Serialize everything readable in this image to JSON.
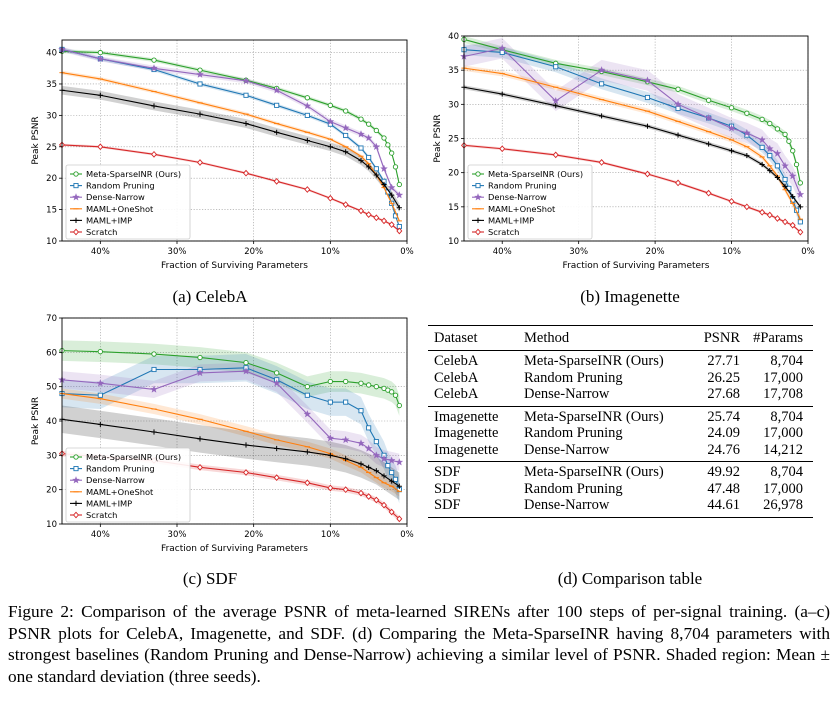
{
  "colors": {
    "Meta-SparseINR (Ours)": "#2ca02c",
    "Random Pruning": "#1f77b4",
    "Dense-Narrow": "#9467bd",
    "MAML+OneShot": "#ff7f0e",
    "MAML+IMP": "#000000",
    "Scratch": "#d62728"
  },
  "chart_data": [
    {
      "id": "celeba",
      "type": "line",
      "caption": "(a) CelebA",
      "xlabel": "Fraction of Surviving Parameters",
      "ylabel": "Peak PSNR",
      "xlim": [
        45,
        0
      ],
      "ylim": [
        10,
        42
      ],
      "xticks": [
        40,
        30,
        20,
        10,
        0
      ],
      "xtick_labels": [
        "40%",
        "30%",
        "20%",
        "10%",
        "0%"
      ],
      "yticks": [
        10,
        15,
        20,
        25,
        30,
        35,
        40
      ],
      "grid": true,
      "legend": "bottom-left",
      "series": [
        {
          "name": "Meta-SparseINR (Ours)",
          "marker": "circle",
          "x": [
            45,
            40,
            33,
            27,
            21,
            17,
            13,
            10,
            8,
            6,
            5,
            4,
            3,
            2.5,
            2,
            1.5,
            1
          ],
          "y": [
            40.2,
            40,
            38.8,
            37.2,
            35.6,
            34.3,
            32.8,
            31.6,
            30.7,
            29.4,
            28.6,
            27.6,
            26.4,
            25.3,
            24,
            21.8,
            19
          ],
          "std": 0.3
        },
        {
          "name": "Random Pruning",
          "marker": "square",
          "x": [
            45,
            40,
            33,
            27,
            21,
            17,
            13,
            10,
            8,
            6,
            5,
            4,
            3,
            2.5,
            2,
            1.5,
            1
          ],
          "y": [
            40.5,
            39,
            37.3,
            35,
            33.2,
            31.6,
            30,
            28.6,
            26.8,
            24.8,
            23.3,
            21.5,
            19.5,
            17.8,
            16,
            14,
            12.3
          ],
          "std": 0.3
        },
        {
          "name": "Dense-Narrow",
          "marker": "star",
          "x": [
            45,
            40,
            33,
            27,
            21,
            17,
            13,
            10,
            8,
            6,
            5,
            4,
            3,
            2,
            1
          ],
          "y": [
            40.5,
            39,
            37.5,
            36.5,
            35.5,
            34,
            31.5,
            29,
            28,
            27,
            26.4,
            25,
            21.5,
            18.5,
            17.3
          ],
          "std": 0.4
        },
        {
          "name": "MAML+OneShot",
          "marker": "hline",
          "x": [
            45,
            40,
            33,
            27,
            21,
            17,
            13,
            10,
            8,
            6,
            5,
            4,
            3,
            2,
            1
          ],
          "y": [
            36.8,
            35.8,
            33.8,
            32,
            30.2,
            28.7,
            27.3,
            26.2,
            25,
            23.5,
            22.3,
            20.5,
            18.5,
            16,
            13.2
          ],
          "std": 0.3
        },
        {
          "name": "MAML+IMP",
          "marker": "plus",
          "x": [
            45,
            40,
            33,
            27,
            21,
            17,
            13,
            10,
            8,
            6,
            5,
            4,
            3,
            2,
            1
          ],
          "y": [
            34,
            33.2,
            31.5,
            30.2,
            28.7,
            27.3,
            26,
            25,
            24.2,
            22.8,
            21.8,
            20.5,
            19,
            17.3,
            15.3
          ],
          "std": 0.7
        },
        {
          "name": "Scratch",
          "marker": "diamond",
          "x": [
            45,
            40,
            33,
            27,
            21,
            17,
            13,
            10,
            8,
            6,
            5,
            4,
            3,
            2,
            1
          ],
          "y": [
            25.3,
            25,
            23.8,
            22.5,
            20.8,
            19.5,
            18.2,
            16.8,
            15.8,
            14.8,
            14.2,
            13.7,
            13.2,
            12.6,
            11.6
          ],
          "std": 0.2
        }
      ]
    },
    {
      "id": "imagenette",
      "type": "line",
      "caption": "(b) Imagenette",
      "xlabel": "Fraction of Surviving Parameters",
      "ylabel": "Peak PSNR",
      "xlim": [
        45,
        0
      ],
      "ylim": [
        10,
        40
      ],
      "xticks": [
        40,
        30,
        20,
        10,
        0
      ],
      "xtick_labels": [
        "40%",
        "30%",
        "20%",
        "10%",
        "0%"
      ],
      "yticks": [
        10,
        15,
        20,
        25,
        30,
        35,
        40
      ],
      "grid": true,
      "legend": "bottom-left",
      "series": [
        {
          "name": "Meta-SparseINR (Ours)",
          "marker": "circle",
          "x": [
            45,
            40,
            33,
            27,
            21,
            17,
            13,
            10,
            8,
            6,
            5,
            4,
            3,
            2.5,
            2,
            1.5,
            1
          ],
          "y": [
            39.5,
            38,
            36,
            34.8,
            33.3,
            32.2,
            30.6,
            29.5,
            28.7,
            27.8,
            27.2,
            26.4,
            25.6,
            24.6,
            23.2,
            21.2,
            18.5
          ],
          "std": 0.5
        },
        {
          "name": "Random Pruning",
          "marker": "square",
          "x": [
            45,
            40,
            33,
            27,
            21,
            17,
            13,
            10,
            8,
            6,
            5,
            4,
            3,
            2.5,
            2,
            1.5,
            1
          ],
          "y": [
            38,
            37.6,
            35.5,
            33,
            31,
            29.4,
            28,
            26.8,
            25.5,
            23.7,
            22.5,
            21,
            19,
            17.7,
            16,
            14.5,
            12.8
          ],
          "std": 0.8
        },
        {
          "name": "Dense-Narrow",
          "marker": "star",
          "x": [
            45,
            40,
            33,
            27,
            21,
            17,
            13,
            10,
            8,
            6,
            5,
            4,
            3,
            2,
            1
          ],
          "y": [
            37,
            38.2,
            30.5,
            35,
            33.5,
            30,
            28,
            26.5,
            25.8,
            24.8,
            23.5,
            22.8,
            21,
            19.5,
            16.8
          ],
          "std": 1.5
        },
        {
          "name": "MAML+OneShot",
          "marker": "hline",
          "x": [
            45,
            40,
            33,
            27,
            21,
            17,
            13,
            10,
            8,
            6,
            5,
            4,
            3,
            2,
            1
          ],
          "y": [
            35.3,
            34.5,
            32.5,
            30.7,
            29,
            27.5,
            26,
            24.8,
            23.8,
            22.3,
            21,
            19.5,
            17.5,
            15.5,
            13.2
          ],
          "std": 0.4
        },
        {
          "name": "MAML+IMP",
          "marker": "plus",
          "x": [
            45,
            40,
            33,
            27,
            21,
            17,
            13,
            10,
            8,
            6,
            5,
            4,
            3,
            2,
            1
          ],
          "y": [
            32.5,
            31.5,
            29.8,
            28.3,
            26.8,
            25.5,
            24.2,
            23.2,
            22.5,
            21.2,
            20.3,
            19.3,
            18,
            16.5,
            15
          ],
          "std": 0.3
        },
        {
          "name": "Scratch",
          "marker": "diamond",
          "x": [
            45,
            40,
            33,
            27,
            21,
            17,
            13,
            10,
            8,
            6,
            5,
            4,
            3,
            2,
            1
          ],
          "y": [
            24,
            23.5,
            22.6,
            21.5,
            19.8,
            18.5,
            17,
            15.8,
            15,
            14.2,
            13.8,
            13.3,
            12.8,
            12.3,
            11.3
          ],
          "std": 0.2
        }
      ]
    },
    {
      "id": "sdf",
      "type": "line",
      "caption": "(c) SDF",
      "xlabel": "Fraction of Surviving Parameters",
      "ylabel": "Peak PSNR",
      "xlim": [
        45,
        0
      ],
      "ylim": [
        10,
        70
      ],
      "xticks": [
        40,
        30,
        20,
        10,
        0
      ],
      "xtick_labels": [
        "40%",
        "30%",
        "20%",
        "10%",
        "0%"
      ],
      "yticks": [
        10,
        20,
        30,
        40,
        50,
        60,
        70
      ],
      "grid": true,
      "legend": "bottom-left",
      "series": [
        {
          "name": "Meta-SparseINR (Ours)",
          "marker": "circle",
          "x": [
            45,
            40,
            33,
            27,
            21,
            17,
            13,
            10,
            8,
            6,
            5,
            4,
            3,
            2.5,
            2,
            1.5,
            1
          ],
          "y": [
            60.5,
            60.2,
            59.5,
            58.5,
            57,
            54,
            50,
            51.5,
            51.5,
            51,
            50.5,
            50,
            49.5,
            49,
            48.5,
            47.5,
            44.5
          ],
          "std": 3
        },
        {
          "name": "Random Pruning",
          "marker": "square",
          "x": [
            45,
            40,
            33,
            27,
            21,
            17,
            13,
            10,
            8,
            6,
            5,
            4,
            3,
            2.5,
            2,
            1.5,
            1
          ],
          "y": [
            48,
            47.5,
            55,
            55,
            55.5,
            52,
            47.5,
            45.5,
            45.5,
            43,
            38,
            34,
            30,
            27,
            25,
            23,
            20
          ],
          "std": 4
        },
        {
          "name": "Dense-Narrow",
          "marker": "star",
          "x": [
            45,
            40,
            33,
            27,
            21,
            17,
            13,
            10,
            8,
            6,
            5,
            4,
            3,
            2,
            1
          ],
          "y": [
            52,
            51,
            49.2,
            54,
            54.5,
            51,
            42,
            35,
            34.5,
            33.5,
            32,
            30,
            29,
            28.5,
            28
          ],
          "std": 2.5
        },
        {
          "name": "MAML+OneShot",
          "marker": "hline",
          "x": [
            45,
            40,
            33,
            27,
            21,
            17,
            13,
            10,
            8,
            6,
            5,
            4,
            3,
            2,
            1
          ],
          "y": [
            48,
            46.5,
            43.5,
            40.5,
            37,
            34.5,
            32.5,
            30.5,
            28.5,
            26.5,
            25,
            23.5,
            22,
            21,
            19.5
          ],
          "std": 1.5
        },
        {
          "name": "MAML+IMP",
          "marker": "plus",
          "x": [
            45,
            40,
            33,
            27,
            21,
            17,
            13,
            10,
            8,
            6,
            5,
            4,
            3,
            2,
            1
          ],
          "y": [
            40.5,
            39,
            36.8,
            34.8,
            33,
            32,
            31,
            30,
            29,
            27.5,
            26.5,
            25.5,
            24,
            22.5,
            21
          ],
          "std": 4
        },
        {
          "name": "Scratch",
          "marker": "diamond",
          "x": [
            45,
            40,
            33,
            27,
            21,
            17,
            13,
            10,
            8,
            6,
            5,
            4,
            3,
            2,
            1
          ],
          "y": [
            30.5,
            29.5,
            28.5,
            26.5,
            25,
            23.5,
            22,
            20.5,
            20,
            19,
            18,
            17,
            15.5,
            13.5,
            11.5
          ],
          "std": 0.8
        }
      ]
    },
    {
      "id": "comparison",
      "type": "table",
      "caption": "(d) Comparison table",
      "headers": [
        "Dataset",
        "Method",
        "PSNR",
        "#Params"
      ],
      "groups": [
        [
          [
            "CelebA",
            "Meta-SparseINR (Ours)",
            "27.71",
            "8,704"
          ],
          [
            "CelebA",
            "Random Pruning",
            "26.25",
            "17,000"
          ],
          [
            "CelebA",
            "Dense-Narrow",
            "27.68",
            "17,708"
          ]
        ],
        [
          [
            "Imagenette",
            "Meta-SparseINR (Ours)",
            "25.74",
            "8,704"
          ],
          [
            "Imagenette",
            "Random Pruning",
            "24.09",
            "17,000"
          ],
          [
            "Imagenette",
            "Dense-Narrow",
            "24.76",
            "14,212"
          ]
        ],
        [
          [
            "SDF",
            "Meta-SparseINR (Ours)",
            "49.92",
            "8,704"
          ],
          [
            "SDF",
            "Random Pruning",
            "47.48",
            "17,000"
          ],
          [
            "SDF",
            "Dense-Narrow",
            "44.61",
            "26,978"
          ]
        ]
      ]
    }
  ],
  "figure_caption": "Figure 2: Comparison of the average PSNR of meta-learned SIRENs after 100 steps of per-signal training. (a–c) PSNR plots for CelebA, Imagenette, and SDF. (d) Comparing the Meta-SparseINR having 8,704 parameters with strongest baselines (Random Pruning and Dense-Narrow) achieving a similar level of PSNR. Shaded region: Mean ± one standard deviation (three seeds)."
}
